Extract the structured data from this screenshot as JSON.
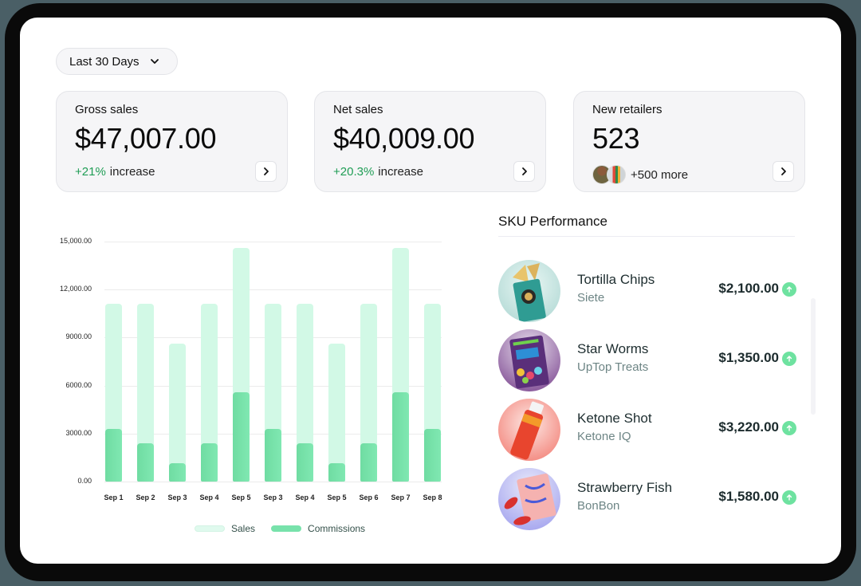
{
  "filter": {
    "date_range_label": "Last 30 Days",
    "chevron_icon": "chevron-down-icon"
  },
  "kpis": [
    {
      "label": "Gross sales",
      "value": "$47,007.00",
      "change_pct": "+21%",
      "change_text": "increase"
    },
    {
      "label": "Net sales",
      "value": "$40,009.00",
      "change_pct": "+20.3%",
      "change_text": "increase"
    },
    {
      "label": "New retailers",
      "value": "523",
      "more_text": "+500 more"
    }
  ],
  "chart_data": {
    "type": "bar",
    "title": "",
    "xlabel": "",
    "ylabel": "",
    "ylim": [
      0,
      15000
    ],
    "y_ticks": [
      "15,000.00",
      "12,000.00",
      "9000.00",
      "6000.00",
      "3000.00",
      "0.00"
    ],
    "y_tick_values": [
      15000,
      12000,
      9000,
      6000,
      3000,
      0
    ],
    "grid": true,
    "legend_position": "bottom",
    "categories": [
      "Sep 1",
      "Sep 2",
      "Sep 3",
      "Sep 4",
      "Sep 5",
      "Sep 3",
      "Sep 4",
      "Sep 5",
      "Sep 6",
      "Sep 7",
      "Sep 8"
    ],
    "series": [
      {
        "name": "Sales",
        "color": "#d2f9e6",
        "values": [
          11100,
          11100,
          8600,
          11100,
          14600,
          11100,
          11100,
          8600,
          11100,
          14600,
          11100
        ]
      },
      {
        "name": "Commissions",
        "color": "#74dfa6",
        "values": [
          3300,
          2400,
          1150,
          2400,
          5600,
          3300,
          2400,
          1150,
          2400,
          5600,
          3300
        ]
      }
    ]
  },
  "legend": {
    "sales": "Sales",
    "commissions": "Commissions"
  },
  "sku": {
    "title": "SKU Performance",
    "items": [
      {
        "name": "Tortilla Chips",
        "brand": "Siete",
        "amount": "$2,100.00",
        "trend": "up"
      },
      {
        "name": "Star Worms",
        "brand": "UpTop Treats",
        "amount": "$1,350.00",
        "trend": "up"
      },
      {
        "name": "Ketone Shot",
        "brand": "Ketone IQ",
        "amount": "$3,220.00",
        "trend": "up"
      },
      {
        "name": "Strawberry Fish",
        "brand": "BonBon",
        "amount": "$1,580.00",
        "trend": "up"
      }
    ]
  },
  "colors": {
    "positive": "#1f9d55",
    "sales_bar": "#d2f9e6",
    "commission_bar": "#74dfa6",
    "trend_up": "#6ee2a0"
  }
}
